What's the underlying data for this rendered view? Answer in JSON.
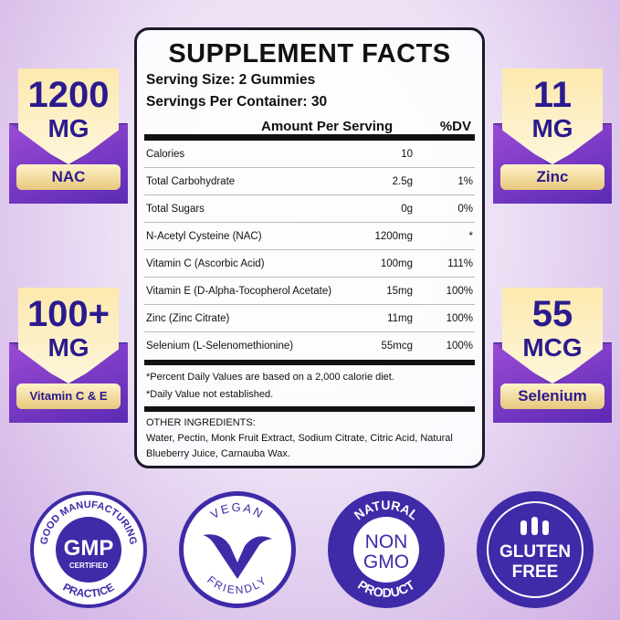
{
  "title": "SUPPLEMENT FACTS",
  "serving_size": "Serving Size: 2 Gummies",
  "servings_per_container": "Servings Per Container: 30",
  "header": {
    "amount": "Amount Per Serving",
    "dv": "%DV"
  },
  "rows": [
    {
      "name": "Calories",
      "amount": "10",
      "dv": ""
    },
    {
      "name": "Total Carbohydrate",
      "amount": "2.5g",
      "dv": "1%"
    },
    {
      "name": "Total Sugars",
      "amount": "0g",
      "dv": "0%"
    },
    {
      "name": "N-Acetyl Cysteine (NAC)",
      "amount": "1200mg",
      "dv": "*"
    },
    {
      "name": "Vitamin C (Ascorbic Acid)",
      "amount": "100mg",
      "dv": "111%"
    },
    {
      "name": "Vitamin E (D-Alpha-Tocopherol Acetate)",
      "amount": "15mg",
      "dv": "100%"
    },
    {
      "name": "Zinc (Zinc Citrate)",
      "amount": "11mg",
      "dv": "100%"
    },
    {
      "name": "Selenium (L-Selenomethionine)",
      "amount": "55mcg",
      "dv": "100%"
    }
  ],
  "footnotes": [
    "*Percent Daily Values are based on a 2,000 calorie diet.",
    "*Daily Value not established."
  ],
  "other_ingredients": {
    "label": "OTHER INGREDIENTS:",
    "text": "Water, Pectin, Monk Fruit Extract, Sodium Citrate, Citric Acid, Natural Blueberry Juice, Carnauba Wax."
  },
  "badges": [
    {
      "number": "1200",
      "unit": "MG",
      "label": "NAC"
    },
    {
      "number": "100+",
      "unit": "MG",
      "label": "Vitamin C & E"
    },
    {
      "number": "11",
      "unit": "MG",
      "label": "Zinc"
    },
    {
      "number": "55",
      "unit": "MCG",
      "label": "Selenium"
    }
  ],
  "seals": {
    "gmp": {
      "top": "GOOD MANUFACTURING",
      "bottom": "PRACTICE",
      "main": "GMP",
      "sub": "CERTIFIED"
    },
    "vegan": {
      "top": "VEGAN",
      "bottom": "FRIENDLY"
    },
    "nongmo": {
      "top": "NATURAL",
      "bottom": "PRODUCT",
      "line1": "NON",
      "line2": "GMO"
    },
    "gluten": {
      "line1": "GLUTEN",
      "line2": "FREE"
    }
  },
  "colors": {
    "seal": "#3f2aa8",
    "badge_text": "#2b1a8e"
  }
}
